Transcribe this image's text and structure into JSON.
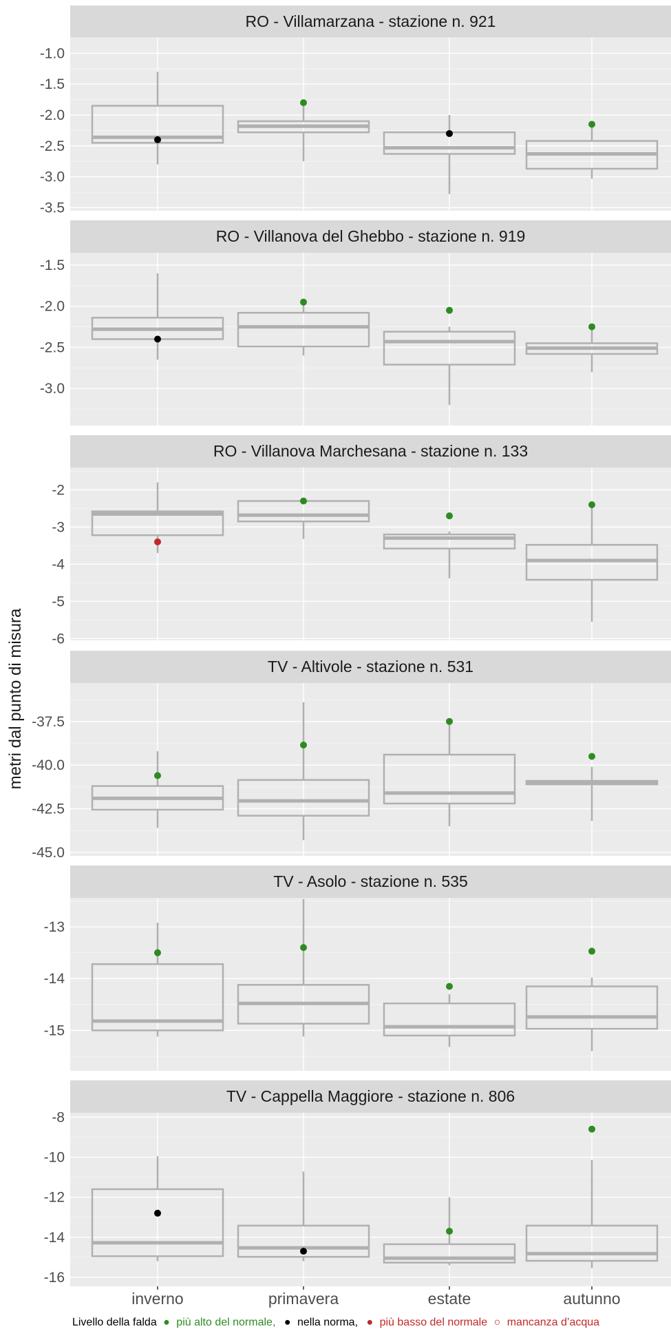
{
  "chart_data": {
    "type": "boxplot",
    "ylabel": "metri dal punto di misura",
    "categories": [
      "inverno",
      "primavera",
      "estate",
      "autunno"
    ],
    "colors": {
      "above": "#2e8b22",
      "normal": "#000000",
      "below": "#c0282a",
      "box": "#b0b0b0",
      "panel": "#ebebeb",
      "strip": "#d9d9d9"
    },
    "panels": [
      {
        "title": "RO - Villamarzana - stazione n. 921",
        "ylim": [
          -3.55,
          -0.75
        ],
        "ticks": [
          -1.0,
          -1.5,
          -2.0,
          -2.5,
          -3.0,
          -3.5
        ],
        "tick_labels": [
          "-1.0",
          "-1.5",
          "-2.0",
          "-2.5",
          "-3.0",
          "-3.5"
        ],
        "boxes": [
          {
            "category": "inverno",
            "whisker_low": -2.8,
            "q1": -2.45,
            "median": -2.36,
            "q3": -1.85,
            "whisker_high": -1.3
          },
          {
            "category": "primavera",
            "whisker_low": -2.75,
            "q1": -2.28,
            "median": -2.18,
            "q3": -2.1,
            "whisker_high": -1.82
          },
          {
            "category": "estate",
            "whisker_low": -3.28,
            "q1": -2.63,
            "median": -2.53,
            "q3": -2.28,
            "whisker_high": -2.0
          },
          {
            "category": "autunno",
            "whisker_low": -3.03,
            "q1": -2.87,
            "median": -2.63,
            "q3": -2.42,
            "whisker_high": -2.14
          }
        ],
        "points": [
          {
            "category": "inverno",
            "value": -2.4,
            "status": "normal"
          },
          {
            "category": "primavera",
            "value": -1.8,
            "status": "above"
          },
          {
            "category": "estate",
            "value": -2.3,
            "status": "normal"
          },
          {
            "category": "autunno",
            "value": -2.15,
            "status": "above"
          }
        ]
      },
      {
        "title": "RO - Villanova del Ghebbo - stazione n. 919",
        "ylim": [
          -3.45,
          -1.35
        ],
        "ticks": [
          -1.5,
          -2.0,
          -2.5,
          -3.0
        ],
        "tick_labels": [
          "-1.5",
          "-2.0",
          "-2.5",
          "-3.0"
        ],
        "boxes": [
          {
            "category": "inverno",
            "whisker_low": -2.65,
            "q1": -2.4,
            "median": -2.28,
            "q3": -2.14,
            "whisker_high": -1.6
          },
          {
            "category": "primavera",
            "whisker_low": -2.6,
            "q1": -2.49,
            "median": -2.25,
            "q3": -2.08,
            "whisker_high": -1.95
          },
          {
            "category": "estate",
            "whisker_low": -3.2,
            "q1": -2.71,
            "median": -2.43,
            "q3": -2.31,
            "whisker_high": -2.25
          },
          {
            "category": "autunno",
            "whisker_low": -2.8,
            "q1": -2.58,
            "median": -2.51,
            "q3": -2.45,
            "whisker_high": -2.25
          }
        ],
        "points": [
          {
            "category": "inverno",
            "value": -2.4,
            "status": "normal"
          },
          {
            "category": "primavera",
            "value": -1.95,
            "status": "above"
          },
          {
            "category": "estate",
            "value": -2.05,
            "status": "above"
          },
          {
            "category": "autunno",
            "value": -2.25,
            "status": "above"
          }
        ]
      },
      {
        "title": "RO - Villanova Marchesana - stazione n. 133",
        "ylim": [
          -6.05,
          -1.4
        ],
        "ticks": [
          -2,
          -3,
          -4,
          -5,
          -6
        ],
        "tick_labels": [
          "-2",
          "-3",
          "-4",
          "-5",
          "-6"
        ],
        "boxes": [
          {
            "category": "inverno",
            "whisker_low": -3.7,
            "q1": -3.22,
            "median": -2.65,
            "q3": -2.58,
            "whisker_high": -1.8
          },
          {
            "category": "primavera",
            "whisker_low": -3.32,
            "q1": -2.85,
            "median": -2.68,
            "q3": -2.3,
            "whisker_high": -2.25
          },
          {
            "category": "estate",
            "whisker_low": -4.38,
            "q1": -3.58,
            "median": -3.3,
            "q3": -3.2,
            "whisker_high": -3.12
          },
          {
            "category": "autunno",
            "whisker_low": -5.55,
            "q1": -4.42,
            "median": -3.9,
            "q3": -3.48,
            "whisker_high": -2.4
          }
        ],
        "points": [
          {
            "category": "inverno",
            "value": -3.4,
            "status": "below"
          },
          {
            "category": "primavera",
            "value": -2.3,
            "status": "above"
          },
          {
            "category": "estate",
            "value": -2.7,
            "status": "above"
          },
          {
            "category": "autunno",
            "value": -2.4,
            "status": "above"
          }
        ]
      },
      {
        "title": "TV - Altivole - stazione n. 531",
        "ylim": [
          -45.2,
          -35.3
        ],
        "ticks": [
          -37.5,
          -40.0,
          -42.5,
          -45.0
        ],
        "tick_labels": [
          "-37.5",
          "-40.0",
          "-42.5",
          "-45.0"
        ],
        "boxes": [
          {
            "category": "inverno",
            "whisker_low": -43.6,
            "q1": -42.55,
            "median": -41.9,
            "q3": -41.2,
            "whisker_high": -39.2
          },
          {
            "category": "primavera",
            "whisker_low": -44.3,
            "q1": -42.9,
            "median": -42.05,
            "q3": -40.85,
            "whisker_high": -36.4
          },
          {
            "category": "estate",
            "whisker_low": -43.5,
            "q1": -42.2,
            "median": -41.6,
            "q3": -39.4,
            "whisker_high": -37.6
          },
          {
            "category": "autunno",
            "whisker_low": -43.2,
            "q1": -41.1,
            "median": -41.0,
            "q3": -40.9,
            "whisker_high": -40.1
          }
        ],
        "points": [
          {
            "category": "inverno",
            "value": -40.6,
            "status": "above"
          },
          {
            "category": "primavera",
            "value": -38.85,
            "status": "above"
          },
          {
            "category": "estate",
            "value": -37.5,
            "status": "above"
          },
          {
            "category": "autunno",
            "value": -39.5,
            "status": "above"
          }
        ]
      },
      {
        "title": "TV - Asolo - stazione n. 535",
        "ylim": [
          -15.78,
          -12.44
        ],
        "ticks": [
          -13,
          -14,
          -15
        ],
        "tick_labels": [
          "-13",
          "-14",
          "-15"
        ],
        "boxes": [
          {
            "category": "inverno",
            "whisker_low": -15.12,
            "q1": -15.0,
            "median": -14.82,
            "q3": -13.72,
            "whisker_high": -12.92
          },
          {
            "category": "primavera",
            "whisker_low": -15.12,
            "q1": -14.87,
            "median": -14.48,
            "q3": -14.12,
            "whisker_high": -12.46
          },
          {
            "category": "estate",
            "whisker_low": -15.32,
            "q1": -15.1,
            "median": -14.93,
            "q3": -14.48,
            "whisker_high": -14.3
          },
          {
            "category": "autunno",
            "whisker_low": -15.4,
            "q1": -14.97,
            "median": -14.74,
            "q3": -14.15,
            "whisker_high": -13.98
          }
        ],
        "points": [
          {
            "category": "inverno",
            "value": -13.5,
            "status": "above"
          },
          {
            "category": "primavera",
            "value": -13.4,
            "status": "above"
          },
          {
            "category": "estate",
            "value": -14.15,
            "status": "above"
          },
          {
            "category": "autunno",
            "value": -13.47,
            "status": "above"
          }
        ]
      },
      {
        "title": "TV - Cappella Maggiore - stazione n. 806",
        "ylim": [
          -16.45,
          -7.78
        ],
        "ticks": [
          -8,
          -10,
          -12,
          -14,
          -16
        ],
        "tick_labels": [
          "-8",
          "-10",
          "-12",
          "-14",
          "-16"
        ],
        "boxes": [
          {
            "category": "inverno",
            "whisker_low": -15.2,
            "q1": -14.95,
            "median": -14.28,
            "q3": -11.6,
            "whisker_high": -9.95
          },
          {
            "category": "primavera",
            "whisker_low": -15.2,
            "q1": -14.98,
            "median": -14.53,
            "q3": -13.42,
            "whisker_high": -10.72
          },
          {
            "category": "estate",
            "whisker_low": -15.4,
            "q1": -15.27,
            "median": -15.05,
            "q3": -14.35,
            "whisker_high": -12.0
          },
          {
            "category": "autunno",
            "whisker_low": -15.55,
            "q1": -15.18,
            "median": -14.82,
            "q3": -13.42,
            "whisker_high": -10.15
          }
        ],
        "points": [
          {
            "category": "inverno",
            "value": -12.8,
            "status": "normal"
          },
          {
            "category": "primavera",
            "value": -14.7,
            "status": "normal"
          },
          {
            "category": "estate",
            "value": -13.7,
            "status": "above"
          },
          {
            "category": "autunno",
            "value": -8.6,
            "status": "above"
          }
        ]
      }
    ],
    "legend": {
      "prefix": "Livello della falda",
      "items": [
        {
          "symbol": "●",
          "label": "più alto del normale,",
          "color": "#2e8b22"
        },
        {
          "symbol": "●",
          "label": "nella norma,",
          "color": "#000000"
        },
        {
          "symbol": "●",
          "label": "più basso del normale",
          "color": "#c0282a"
        },
        {
          "symbol": "○",
          "label": "mancanza d’acqua",
          "color": "#c0282a"
        }
      ]
    }
  }
}
